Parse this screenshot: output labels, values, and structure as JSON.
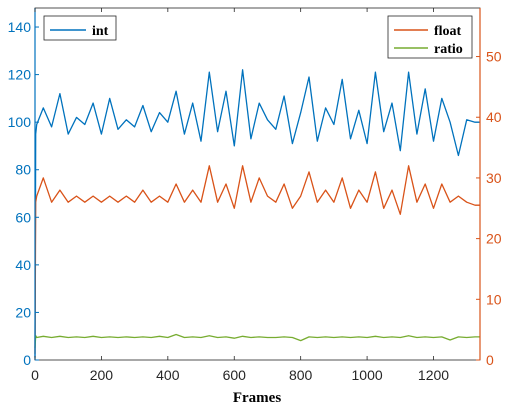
{
  "chart_data": {
    "type": "line",
    "xlabel": "Frames",
    "x_range": [
      0,
      1340
    ],
    "x_ticks": [
      0,
      200,
      400,
      600,
      800,
      1000,
      1200
    ],
    "left_axis": {
      "range": [
        0,
        148
      ],
      "ticks": [
        0,
        20,
        40,
        60,
        80,
        100,
        120,
        140
      ],
      "color": "#0072BD"
    },
    "right_axis": {
      "range": [
        0,
        58
      ],
      "ticks": [
        0,
        10,
        20,
        30,
        40,
        50
      ],
      "color": "#D95319"
    },
    "grid": false,
    "legend_left": {
      "placement": "top-left",
      "entries": [
        "int"
      ]
    },
    "legend_right": {
      "placement": "top-right",
      "entries": [
        "float",
        "ratio"
      ]
    },
    "series": [
      {
        "name": "int",
        "axis": "left",
        "color": "#0072BD",
        "x": [
          0,
          2,
          5,
          25,
          50,
          75,
          100,
          125,
          150,
          175,
          200,
          225,
          250,
          275,
          300,
          325,
          350,
          375,
          400,
          425,
          450,
          475,
          500,
          525,
          550,
          575,
          600,
          625,
          650,
          675,
          700,
          725,
          750,
          775,
          800,
          825,
          850,
          875,
          900,
          925,
          950,
          975,
          1000,
          1025,
          1050,
          1075,
          1100,
          1125,
          1150,
          1175,
          1200,
          1225,
          1250,
          1275,
          1300,
          1325,
          1340
        ],
        "y": [
          1,
          95,
          99,
          106,
          98,
          112,
          95,
          102,
          99,
          108,
          95,
          110,
          97,
          101,
          98,
          107,
          96,
          104,
          100,
          113,
          95,
          108,
          92,
          121,
          96,
          113,
          90,
          122,
          93,
          108,
          101,
          97,
          111,
          91,
          104,
          119,
          92,
          106,
          99,
          118,
          93,
          105,
          91,
          121,
          96,
          108,
          88,
          121,
          95,
          114,
          92,
          110,
          100,
          86,
          101,
          100,
          100
        ]
      },
      {
        "name": "float",
        "axis": "right",
        "color": "#D95319",
        "x": [
          0,
          2,
          5,
          25,
          50,
          75,
          100,
          125,
          150,
          175,
          200,
          225,
          250,
          275,
          300,
          325,
          350,
          375,
          400,
          425,
          450,
          475,
          500,
          525,
          550,
          575,
          600,
          625,
          650,
          675,
          700,
          725,
          750,
          775,
          800,
          825,
          850,
          875,
          900,
          925,
          950,
          975,
          1000,
          1025,
          1050,
          1075,
          1100,
          1125,
          1150,
          1175,
          1200,
          1225,
          1250,
          1275,
          1300,
          1325,
          1340
        ],
        "y": [
          1,
          26,
          27,
          30,
          26,
          28,
          26,
          27,
          26,
          27,
          26,
          27,
          26,
          27,
          26,
          28,
          26,
          27,
          26,
          29,
          26,
          28,
          26,
          32,
          26,
          29,
          25,
          32,
          26,
          30,
          27,
          26,
          29,
          25,
          27,
          31,
          26,
          28,
          26,
          30,
          25,
          28,
          26,
          31,
          25,
          28,
          24,
          32,
          26,
          29,
          25,
          29,
          26,
          27,
          26,
          25.5,
          25.5
        ]
      },
      {
        "name": "ratio",
        "axis": "right",
        "color": "#77AC30",
        "x": [
          0,
          2,
          5,
          25,
          50,
          75,
          100,
          125,
          150,
          175,
          200,
          225,
          250,
          275,
          300,
          325,
          350,
          375,
          400,
          425,
          450,
          475,
          500,
          525,
          550,
          575,
          600,
          625,
          650,
          675,
          700,
          725,
          750,
          775,
          800,
          825,
          850,
          875,
          900,
          925,
          950,
          975,
          1000,
          1025,
          1050,
          1075,
          1100,
          1125,
          1150,
          1175,
          1200,
          1225,
          1250,
          1275,
          1300,
          1325,
          1340
        ],
        "y": [
          2,
          4,
          3.7,
          3.9,
          3.7,
          3.9,
          3.7,
          3.8,
          3.7,
          3.9,
          3.7,
          3.8,
          3.7,
          3.8,
          3.7,
          3.8,
          3.7,
          3.9,
          3.7,
          4.2,
          3.7,
          3.8,
          3.7,
          4,
          3.7,
          3.8,
          3.6,
          3.9,
          3.7,
          3.8,
          3.7,
          3.7,
          3.8,
          3.7,
          3.2,
          3.8,
          3.7,
          3.8,
          3.7,
          3.8,
          3.7,
          3.8,
          3.7,
          3.9,
          3.7,
          3.8,
          3.7,
          4,
          3.7,
          3.8,
          3.7,
          3.8,
          3.3,
          3.8,
          3.7,
          3.8,
          3.8
        ]
      }
    ]
  }
}
